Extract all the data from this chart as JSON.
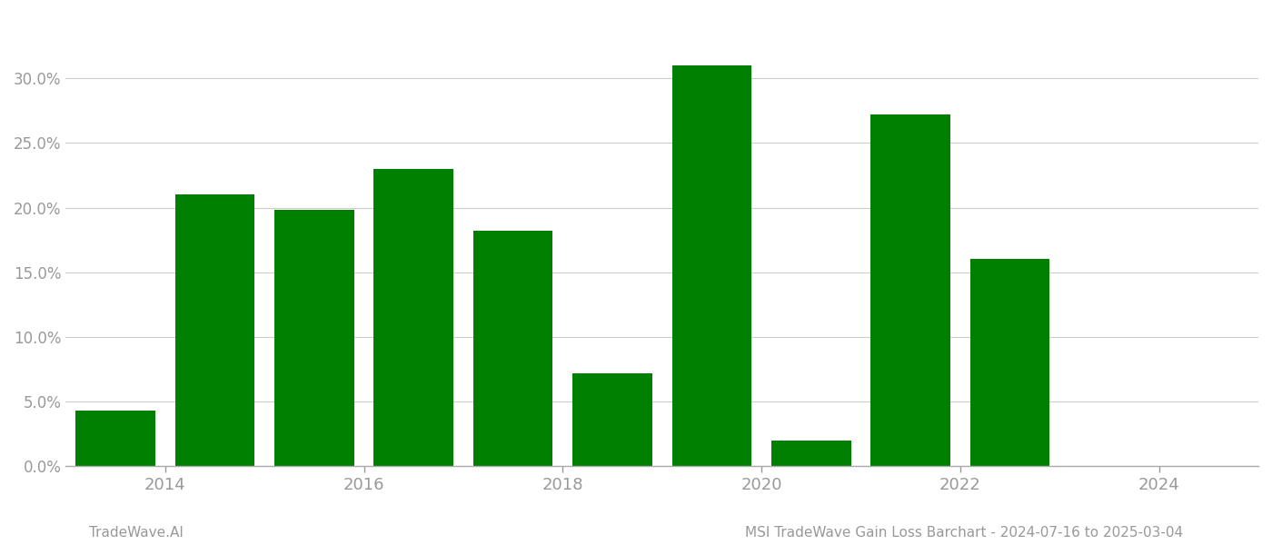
{
  "years": [
    2013.5,
    2014.5,
    2015.5,
    2016.5,
    2017.5,
    2018.5,
    2019.5,
    2020.5,
    2021.5,
    2022.5,
    2023.5
  ],
  "values": [
    4.3,
    21.0,
    19.8,
    23.0,
    18.2,
    7.2,
    31.0,
    2.0,
    27.2,
    16.0,
    0.0
  ],
  "bar_color": "#008000",
  "background_color": "#ffffff",
  "grid_color": "#cccccc",
  "ylabel_tick_color": "#999999",
  "xlabel_tick_color": "#999999",
  "footer_left": "TradeWave.AI",
  "footer_right": "MSI TradeWave Gain Loss Barchart - 2024-07-16 to 2025-03-04",
  "footer_color": "#999999",
  "footer_fontsize": 11,
  "ylim": [
    0,
    35
  ],
  "yticks": [
    0.0,
    5.0,
    10.0,
    15.0,
    20.0,
    25.0,
    30.0
  ],
  "xticks": [
    2014,
    2016,
    2018,
    2020,
    2022,
    2024
  ],
  "bar_width": 0.8,
  "xlim": [
    2013.0,
    2025.0
  ],
  "figsize": [
    14.0,
    6.0
  ],
  "dpi": 100
}
